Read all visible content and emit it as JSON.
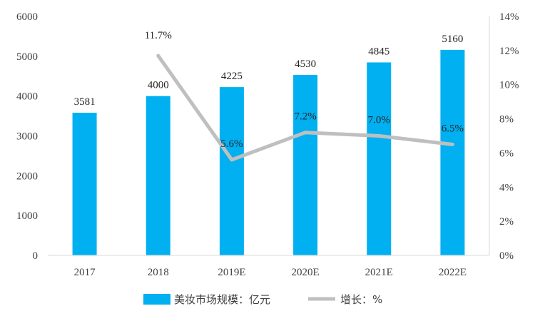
{
  "chart_data": {
    "type": "bar",
    "categories": [
      "2017",
      "2018",
      "2019E",
      "2020E",
      "2021E",
      "2022E"
    ],
    "series": [
      {
        "name": "美妆市场规模：亿元",
        "type": "bar",
        "axis": "left",
        "color": "#00B0F0",
        "values": [
          3581,
          4000,
          4225,
          4530,
          4845,
          5160
        ],
        "labels": [
          "3581",
          "4000",
          "4225",
          "4530",
          "4845",
          "5160"
        ]
      },
      {
        "name": "增长：%",
        "type": "line",
        "axis": "right",
        "color": "#BFBFBF",
        "values": [
          null,
          11.7,
          5.6,
          7.2,
          7.0,
          6.5
        ],
        "labels": [
          "",
          "11.7%",
          "5.6%",
          "7.2%",
          "7.0%",
          "6.5%"
        ]
      }
    ],
    "y_left": {
      "range": [
        0,
        6000
      ],
      "ticks": [
        "0",
        "1000",
        "2000",
        "3000",
        "4000",
        "5000",
        "6000"
      ]
    },
    "y_right": {
      "range": [
        0,
        14
      ],
      "ticks": [
        "0%",
        "2%",
        "4%",
        "6%",
        "8%",
        "10%",
        "12%",
        "14%"
      ]
    },
    "grid": false,
    "legend_position": "bottom"
  }
}
